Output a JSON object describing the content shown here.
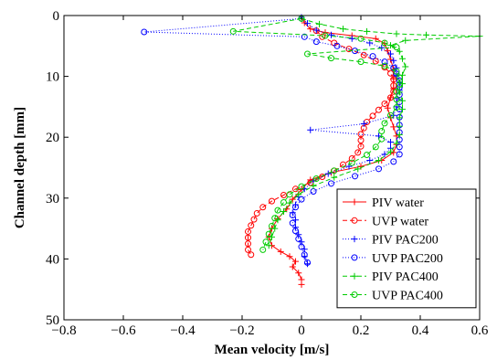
{
  "chart_data": {
    "type": "line",
    "title": "",
    "xlabel": "Mean velocity [m/s]",
    "ylabel": "Channel depth [mm]",
    "xlim": [
      -0.8,
      0.6
    ],
    "ylim": [
      0,
      50
    ],
    "y_inverted": true,
    "xticks": [
      -0.8,
      -0.6,
      -0.4,
      -0.2,
      0,
      0.2,
      0.4,
      0.6
    ],
    "xtick_labels": [
      "−0.8",
      "−0.6",
      "−0.4",
      "−0.2",
      "0",
      "0.2",
      "0.4",
      "0.6"
    ],
    "yticks": [
      0,
      10,
      20,
      30,
      40,
      50
    ],
    "ytick_labels": [
      "0",
      "10",
      "20",
      "30",
      "40",
      "50"
    ],
    "grid": false,
    "legend_position": "bottom-right",
    "series": [
      {
        "name": "PIV water",
        "color": "#ff0000",
        "dash": "",
        "marker": "plus",
        "points": [
          [
            0.0,
            0.3
          ],
          [
            0.01,
            1.2
          ],
          [
            0.03,
            2.2
          ],
          [
            0.08,
            2.8
          ],
          [
            0.17,
            3.3
          ],
          [
            0.25,
            3.8
          ],
          [
            0.28,
            4.6
          ],
          [
            0.29,
            5.8
          ],
          [
            0.3,
            7.2
          ],
          [
            0.31,
            8.8
          ],
          [
            0.31,
            10.4
          ],
          [
            0.31,
            12.0
          ],
          [
            0.3,
            13.5
          ],
          [
            0.29,
            15.2
          ],
          [
            0.3,
            16.8
          ],
          [
            0.31,
            18.3
          ],
          [
            0.32,
            19.8
          ],
          [
            0.32,
            21.2
          ],
          [
            0.31,
            22.5
          ],
          [
            0.27,
            23.8
          ],
          [
            0.2,
            24.8
          ],
          [
            0.1,
            25.8
          ],
          [
            0.03,
            27.0
          ],
          [
            0.0,
            28.6
          ],
          [
            -0.03,
            30.2
          ],
          [
            -0.05,
            31.8
          ],
          [
            -0.08,
            33.4
          ],
          [
            -0.1,
            35.0
          ],
          [
            -0.11,
            36.4
          ],
          [
            -0.1,
            37.8
          ],
          [
            -0.07,
            38.8
          ],
          [
            -0.04,
            39.6
          ],
          [
            -0.02,
            40.4
          ],
          [
            -0.03,
            41.3
          ],
          [
            -0.01,
            42.3
          ],
          [
            0.0,
            43.4
          ],
          [
            0.0,
            44.2
          ]
        ]
      },
      {
        "name": "UVP water",
        "color": "#ff0000",
        "dash": "5,3",
        "marker": "circle",
        "points": [
          [
            0.05,
            2.5
          ],
          [
            0.07,
            3.5
          ],
          [
            0.11,
            4.5
          ],
          [
            0.16,
            5.5
          ],
          [
            0.21,
            6.5
          ],
          [
            0.25,
            7.5
          ],
          [
            0.28,
            8.5
          ],
          [
            0.3,
            9.5
          ],
          [
            0.31,
            10.5
          ],
          [
            0.31,
            11.5
          ],
          [
            0.31,
            12.5
          ],
          [
            0.3,
            13.5
          ],
          [
            0.28,
            14.5
          ],
          [
            0.26,
            15.5
          ],
          [
            0.24,
            16.5
          ],
          [
            0.22,
            17.5
          ],
          [
            0.21,
            18.5
          ],
          [
            0.2,
            19.5
          ],
          [
            0.2,
            20.5
          ],
          [
            0.2,
            21.5
          ],
          [
            0.19,
            22.5
          ],
          [
            0.17,
            23.5
          ],
          [
            0.14,
            24.5
          ],
          [
            0.11,
            25.5
          ],
          [
            0.07,
            26.5
          ],
          [
            0.03,
            27.5
          ],
          [
            -0.02,
            28.5
          ],
          [
            -0.06,
            29.5
          ],
          [
            -0.1,
            30.5
          ],
          [
            -0.13,
            31.5
          ],
          [
            -0.15,
            32.5
          ],
          [
            -0.16,
            33.5
          ],
          [
            -0.17,
            34.5
          ],
          [
            -0.18,
            35.5
          ],
          [
            -0.18,
            36.5
          ],
          [
            -0.18,
            37.5
          ],
          [
            -0.18,
            38.5
          ],
          [
            -0.17,
            39.3
          ]
        ]
      },
      {
        "name": "PIV PAC200",
        "color": "#0000ff",
        "dash": "1,2",
        "marker": "plus",
        "points": [
          [
            0.0,
            0.3
          ],
          [
            0.02,
            1.3
          ],
          [
            0.05,
            2.4
          ],
          [
            0.1,
            3.2
          ],
          [
            0.17,
            3.8
          ],
          [
            0.23,
            4.5
          ],
          [
            0.27,
            5.3
          ],
          [
            0.3,
            6.3
          ],
          [
            0.31,
            7.4
          ],
          [
            0.32,
            8.6
          ],
          [
            0.32,
            9.8
          ],
          [
            0.33,
            11.0
          ],
          [
            0.33,
            12.3
          ],
          [
            0.32,
            13.6
          ],
          [
            0.32,
            15.0
          ],
          [
            0.31,
            16.4
          ],
          [
            0.21,
            17.8
          ],
          [
            0.03,
            18.8
          ],
          [
            0.26,
            19.8
          ],
          [
            0.3,
            20.8
          ],
          [
            0.3,
            21.8
          ],
          [
            0.28,
            22.8
          ],
          [
            0.23,
            23.8
          ],
          [
            0.16,
            24.8
          ],
          [
            0.09,
            26.0
          ],
          [
            0.04,
            27.2
          ],
          [
            0.01,
            28.5
          ],
          [
            -0.01,
            29.8
          ],
          [
            -0.02,
            31.1
          ],
          [
            -0.03,
            32.4
          ],
          [
            -0.02,
            33.6
          ],
          [
            -0.02,
            34.8
          ],
          [
            -0.01,
            36.0
          ],
          [
            0.0,
            37.2
          ],
          [
            0.01,
            38.4
          ],
          [
            0.01,
            39.6
          ],
          [
            0.02,
            40.8
          ]
        ]
      },
      {
        "name": "UVP PAC200",
        "color": "#0000ff",
        "dash": "1,2",
        "marker": "circle",
        "points": [
          [
            0.0,
            0.5
          ],
          [
            -0.53,
            2.7
          ],
          [
            0.01,
            3.5
          ],
          [
            0.05,
            4.3
          ],
          [
            0.12,
            5.0
          ],
          [
            0.18,
            5.8
          ],
          [
            0.24,
            6.7
          ],
          [
            0.28,
            7.6
          ],
          [
            0.31,
            8.6
          ],
          [
            0.32,
            9.6
          ],
          [
            0.33,
            10.7
          ],
          [
            0.33,
            11.8
          ],
          [
            0.33,
            13.0
          ],
          [
            0.33,
            14.2
          ],
          [
            0.33,
            15.4
          ],
          [
            0.33,
            16.7
          ],
          [
            0.33,
            18.0
          ],
          [
            0.33,
            19.2
          ],
          [
            0.33,
            20.4
          ],
          [
            0.33,
            21.6
          ],
          [
            0.33,
            22.8
          ],
          [
            0.31,
            24.0
          ],
          [
            0.26,
            25.2
          ],
          [
            0.18,
            26.4
          ],
          [
            0.1,
            27.6
          ],
          [
            0.04,
            28.9
          ],
          [
            0.0,
            30.2
          ],
          [
            -0.02,
            31.5
          ],
          [
            -0.03,
            32.8
          ],
          [
            -0.03,
            34.1
          ],
          [
            -0.02,
            35.4
          ],
          [
            -0.01,
            36.7
          ],
          [
            0.0,
            38.0
          ],
          [
            0.01,
            39.3
          ],
          [
            0.02,
            40.6
          ]
        ]
      },
      {
        "name": "PIV PAC400",
        "color": "#00cc00",
        "dash": "5,3",
        "marker": "plus",
        "points": [
          [
            0.0,
            0.5
          ],
          [
            0.06,
            1.4
          ],
          [
            0.14,
            2.2
          ],
          [
            0.22,
            2.6
          ],
          [
            0.32,
            3.0
          ],
          [
            0.42,
            3.2
          ],
          [
            0.6,
            3.4
          ],
          [
            0.35,
            4.1
          ],
          [
            0.3,
            4.9
          ],
          [
            0.33,
            5.9
          ],
          [
            0.34,
            7.1
          ],
          [
            0.35,
            8.4
          ],
          [
            0.34,
            9.8
          ],
          [
            0.34,
            11.2
          ],
          [
            0.33,
            12.6
          ],
          [
            0.34,
            14.0
          ],
          [
            0.34,
            15.4
          ],
          [
            0.33,
            16.8
          ],
          [
            0.33,
            18.2
          ],
          [
            0.33,
            19.6
          ],
          [
            0.32,
            21.0
          ],
          [
            0.3,
            22.4
          ],
          [
            0.26,
            23.8
          ],
          [
            0.19,
            25.2
          ],
          [
            0.11,
            26.6
          ],
          [
            0.04,
            28.0
          ],
          [
            -0.01,
            29.4
          ],
          [
            -0.04,
            30.8
          ],
          [
            -0.06,
            32.2
          ],
          [
            -0.08,
            33.6
          ],
          [
            -0.09,
            35.0
          ],
          [
            -0.1,
            36.4
          ],
          [
            -0.11,
            37.8
          ]
        ]
      },
      {
        "name": "UVP PAC400",
        "color": "#00cc00",
        "dash": "5,3",
        "marker": "circle",
        "points": [
          [
            0.0,
            0.5
          ],
          [
            -0.23,
            2.6
          ],
          [
            0.08,
            3.3
          ],
          [
            0.2,
            3.8
          ],
          [
            0.28,
            4.5
          ],
          [
            0.32,
            5.2
          ],
          [
            0.02,
            6.3
          ],
          [
            0.1,
            7.0
          ],
          [
            0.2,
            7.6
          ],
          [
            0.28,
            8.3
          ],
          [
            0.32,
            9.2
          ],
          [
            0.33,
            10.2
          ],
          [
            0.33,
            11.3
          ],
          [
            0.32,
            12.5
          ],
          [
            0.32,
            13.8
          ],
          [
            0.32,
            15.1
          ],
          [
            0.3,
            16.4
          ],
          [
            0.28,
            17.7
          ],
          [
            0.27,
            19.0
          ],
          [
            0.27,
            20.3
          ],
          [
            0.25,
            21.6
          ],
          [
            0.22,
            22.9
          ],
          [
            0.17,
            24.2
          ],
          [
            0.11,
            25.5
          ],
          [
            0.05,
            26.8
          ],
          [
            0.0,
            28.1
          ],
          [
            -0.04,
            29.4
          ],
          [
            -0.06,
            30.7
          ],
          [
            -0.08,
            32.0
          ],
          [
            -0.09,
            33.3
          ],
          [
            -0.1,
            34.6
          ],
          [
            -0.11,
            35.9
          ],
          [
            -0.12,
            37.2
          ],
          [
            -0.13,
            38.5
          ]
        ]
      }
    ]
  }
}
